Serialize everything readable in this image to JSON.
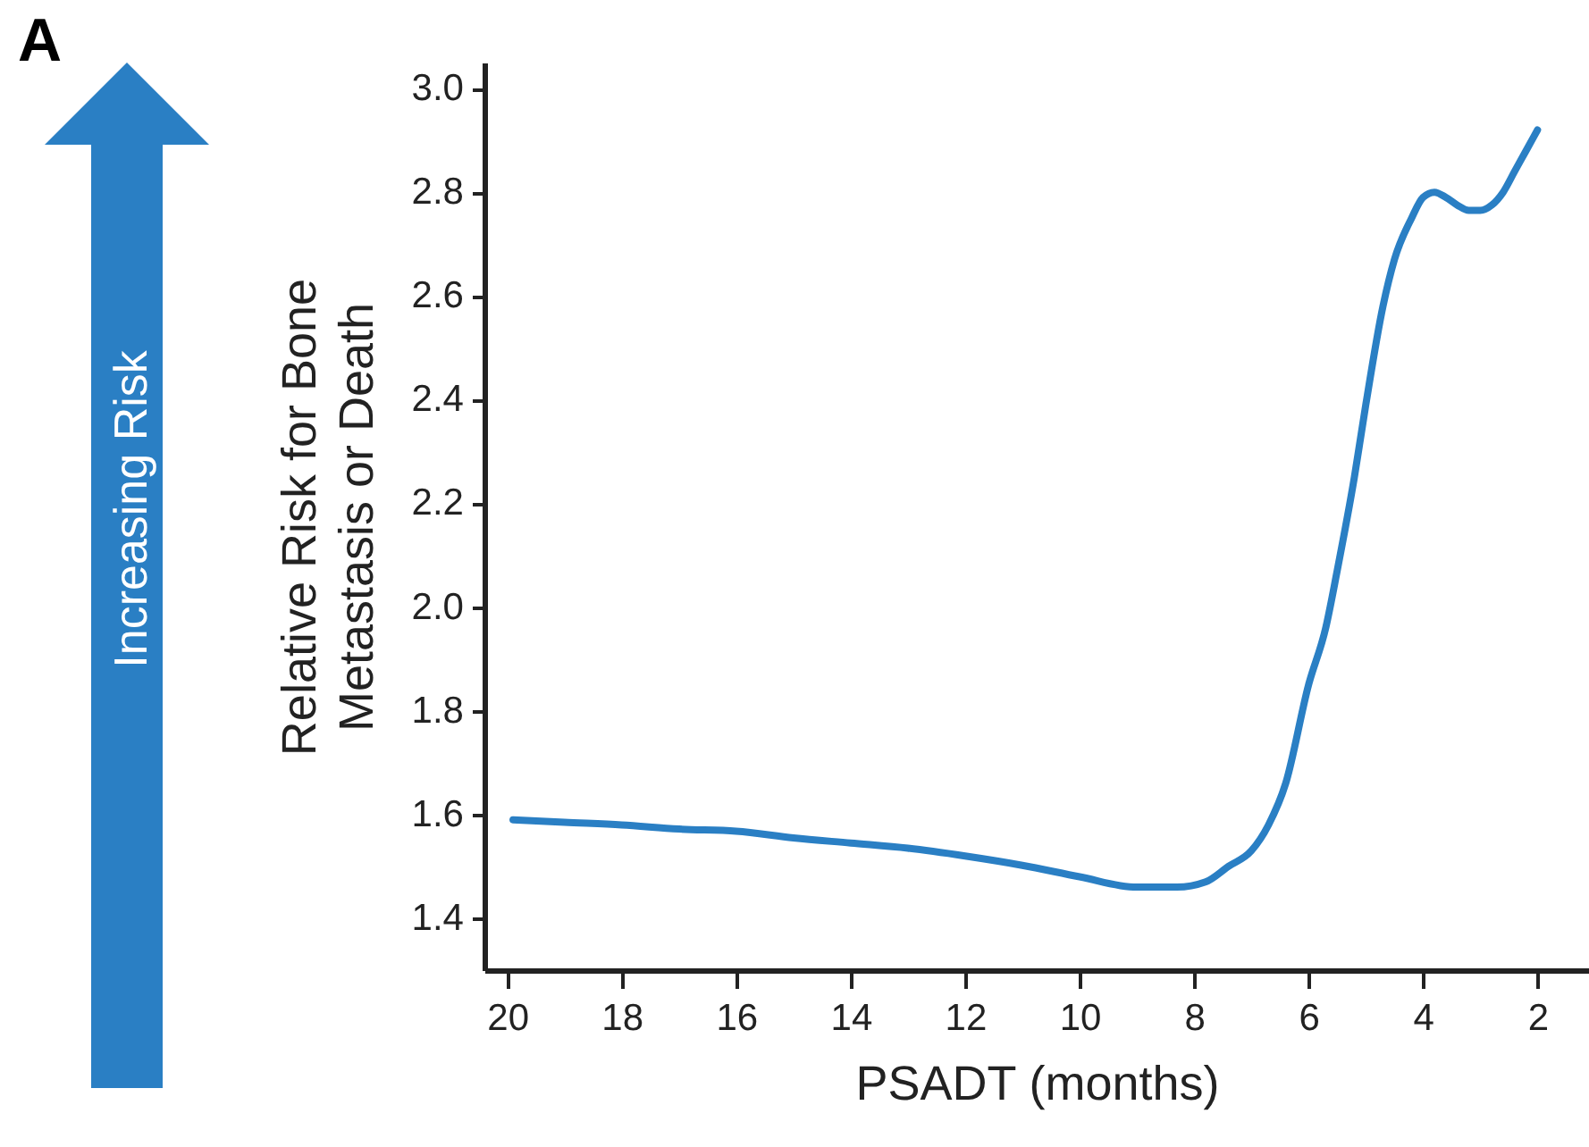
{
  "chart_data": {
    "type": "line",
    "xlabel": "PSADT (months)",
    "ylabel": "Relative Risk for Bone\nMetastasis or Death",
    "annotations": [
      "A",
      "Increasing Risk"
    ],
    "x": [
      19.9,
      19,
      18,
      17,
      16,
      15,
      14,
      13,
      12,
      11,
      10,
      9,
      8.3,
      7.8,
      7.4,
      7,
      6.7,
      6.4,
      6,
      5.7,
      5.5,
      5.2,
      5,
      4.7,
      4.5,
      4.2,
      4,
      3.8,
      3.6,
      3.4,
      3.2,
      3,
      2.8,
      2.6,
      2.4,
      2.2,
      2
    ],
    "series": [
      {
        "color": "#2a7fc4",
        "values": [
          1.59,
          1.585,
          1.58,
          1.572,
          1.568,
          1.555,
          1.545,
          1.535,
          1.52,
          1.502,
          1.48,
          1.46,
          1.46,
          1.47,
          1.5,
          1.53,
          1.58,
          1.66,
          1.85,
          1.96,
          2.07,
          2.25,
          2.39,
          2.58,
          2.67,
          2.75,
          2.79,
          2.8,
          2.79,
          2.775,
          2.765,
          2.765,
          2.775,
          2.8,
          2.84,
          2.88,
          2.92
        ]
      }
    ],
    "xlim": [
      20.4,
      1.1
    ],
    "xticks": [
      20,
      18,
      16,
      14,
      12,
      10,
      8,
      6,
      4,
      2
    ],
    "ylim": [
      1.3,
      3.05
    ],
    "yticks": [
      1.4,
      1.6,
      1.8,
      {
        "value": 2,
        "label": "2.0"
      },
      2.2,
      2.4,
      2.6,
      2.8,
      {
        "value": 3,
        "label": "3.0"
      }
    ],
    "grid": false,
    "legend": false,
    "marker": "none",
    "line_style": "solid"
  }
}
